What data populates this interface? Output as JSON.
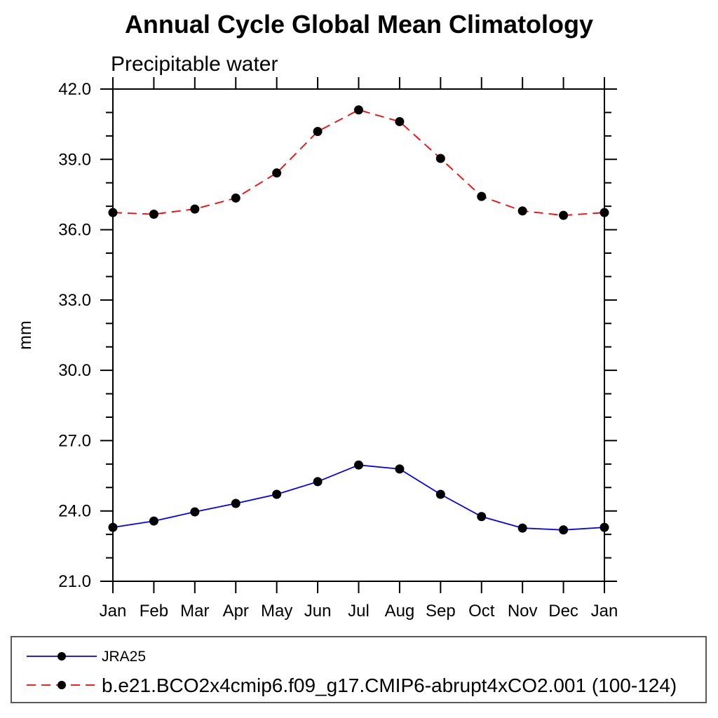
{
  "page": {
    "background": "#ffffff"
  },
  "chart_data": {
    "type": "line",
    "title": "Annual Cycle Global Mean Climatology",
    "subtitle_left": "Precipitable water",
    "xlabel": "",
    "ylabel": "mm",
    "ylim": [
      21.0,
      42.0
    ],
    "y_major_step": 3.0,
    "y_minor_step": 1.0,
    "y_major_tick_labels": [
      "21.0",
      "24.0",
      "27.0",
      "30.0",
      "33.0",
      "36.0",
      "39.0",
      "42.0"
    ],
    "x_tick_labels": [
      "Jan",
      "Feb",
      "Mar",
      "Apr",
      "May",
      "Jun",
      "Jul",
      "Aug",
      "Sep",
      "Oct",
      "Nov",
      "Dec",
      "Jan"
    ],
    "grid": false,
    "legend_position": "bottom-left-box",
    "axis_color": "#000000",
    "marker_color": "#000000",
    "legend_border_color": "#595959",
    "series": [
      {
        "name": "JRA25",
        "color": "#0000ff",
        "line_style": "solid",
        "marker": "filled-circle",
        "values": [
          23.3,
          23.57,
          23.96,
          24.32,
          24.71,
          25.25,
          25.96,
          25.79,
          24.71,
          23.76,
          23.27,
          23.19,
          23.3
        ]
      },
      {
        "name": "b.e21.BCO2x4cmip6.f09_g17.CMIP6-abrupt4xCO2.001 (100-124)",
        "color": "#ff0000",
        "line_style": "dashed",
        "marker": "filled-circle",
        "values": [
          36.73,
          36.66,
          36.88,
          37.35,
          38.42,
          40.19,
          41.11,
          40.61,
          39.04,
          37.42,
          36.8,
          36.61,
          36.73
        ]
      }
    ]
  }
}
